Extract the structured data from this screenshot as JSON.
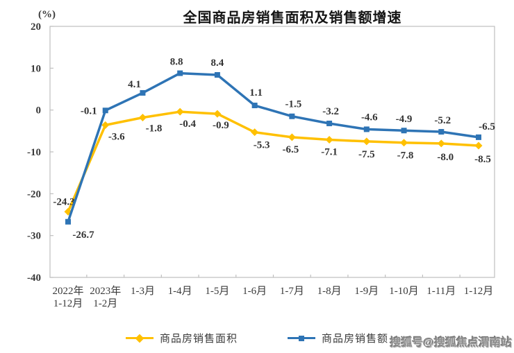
{
  "watermark": "搜狐号@搜狐焦点渭南站",
  "chart_data": {
    "type": "line",
    "title": "全国商品房销售面积及销售额增速",
    "ylabel": "(%)",
    "xlabel": "",
    "ylim": [
      -40,
      20
    ],
    "ytick_step": 10,
    "yticks": [
      20,
      10,
      0,
      -10,
      -20,
      -30,
      -40
    ],
    "grid": false,
    "legend_position": "bottom",
    "frame_color": "#bfbfbf",
    "categories": [
      [
        "2022年",
        "1-12月"
      ],
      [
        "2023年",
        "1-2月"
      ],
      [
        "1-3月"
      ],
      [
        "1-4月"
      ],
      [
        "1-5月"
      ],
      [
        "1-6月"
      ],
      [
        "1-7月"
      ],
      [
        "1-8月"
      ],
      [
        "1-9月"
      ],
      [
        "1-10月"
      ],
      [
        "1-11月"
      ],
      [
        "1-12月"
      ]
    ],
    "series": [
      {
        "name": "商品房销售面积",
        "color": "#FFC000",
        "marker": "diamond",
        "values": [
          -24.3,
          -3.6,
          -1.8,
          -0.4,
          -0.9,
          -5.3,
          -6.5,
          -7.1,
          -7.5,
          -7.8,
          -8.0,
          -8.5
        ],
        "label_offsets": [
          [
            -6,
            -10
          ],
          [
            16,
            21
          ],
          [
            16,
            20
          ],
          [
            11,
            22
          ],
          [
            5,
            21
          ],
          [
            10,
            23
          ],
          [
            -2,
            22
          ],
          [
            0,
            22
          ],
          [
            0,
            23
          ],
          [
            2,
            23
          ],
          [
            6,
            24
          ],
          [
            6,
            24
          ]
        ]
      },
      {
        "name": "商品房销售额",
        "color": "#2E74B5",
        "marker": "square",
        "values": [
          -26.7,
          -0.1,
          4.1,
          8.8,
          8.4,
          1.1,
          -1.5,
          -3.2,
          -4.6,
          -4.9,
          -5.2,
          -6.5
        ],
        "label_offsets": [
          [
            22,
            23
          ],
          [
            -24,
            5
          ],
          [
            -12,
            -8
          ],
          [
            -5,
            -12
          ],
          [
            0,
            -13
          ],
          [
            2,
            -14
          ],
          [
            2,
            -13
          ],
          [
            2,
            -13
          ],
          [
            4,
            -13
          ],
          [
            0,
            -12
          ],
          [
            2,
            -12
          ],
          [
            12,
            -11
          ]
        ]
      }
    ]
  }
}
